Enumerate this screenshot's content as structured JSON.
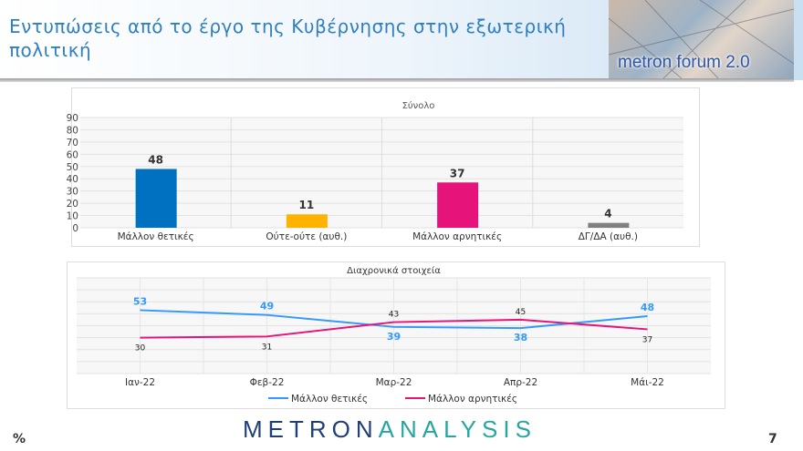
{
  "header": {
    "title": "Εντυπώσεις από το έργο της Κυβέρνησης στην εξωτερική πολιτική",
    "banner_text": "metron forum 2.0"
  },
  "footer": {
    "logo_part1": "METRON",
    "logo_part2": "ANALYSIS",
    "unit": "%",
    "page": "7"
  },
  "chart_data": [
    {
      "type": "bar",
      "title": "Σύνολο",
      "categories": [
        "Μάλλον θετικές",
        "Ούτε-ούτε (αυθ.)",
        "Μάλλον αρνητικές",
        "ΔΓ/ΔΑ (αυθ.)"
      ],
      "values": [
        48,
        11,
        37,
        4
      ],
      "colors": [
        "#0070c0",
        "#ffb300",
        "#e6137a",
        "#808080"
      ],
      "ylim": [
        0,
        90
      ],
      "yticks": [
        "0",
        "10",
        "20",
        "30",
        "40",
        "50",
        "60",
        "70",
        "80",
        "90"
      ],
      "grid": true
    },
    {
      "type": "line",
      "title": "Διαχρονικά στοιχεία",
      "categories": [
        "Ιαν-22",
        "Φεβ-22",
        "Μαρ-22",
        "Απρ-22",
        "Μάι-22"
      ],
      "series": [
        {
          "name": "Μάλλον θετικές",
          "values": [
            53,
            49,
            39,
            38,
            48
          ],
          "color": "#3399ff"
        },
        {
          "name": "Μάλλον αρνητικές",
          "values": [
            30,
            31,
            43,
            45,
            37
          ],
          "color": "#e6137a"
        }
      ],
      "ylim": [
        0,
        80
      ],
      "grid": true,
      "legend": "bottom"
    }
  ]
}
